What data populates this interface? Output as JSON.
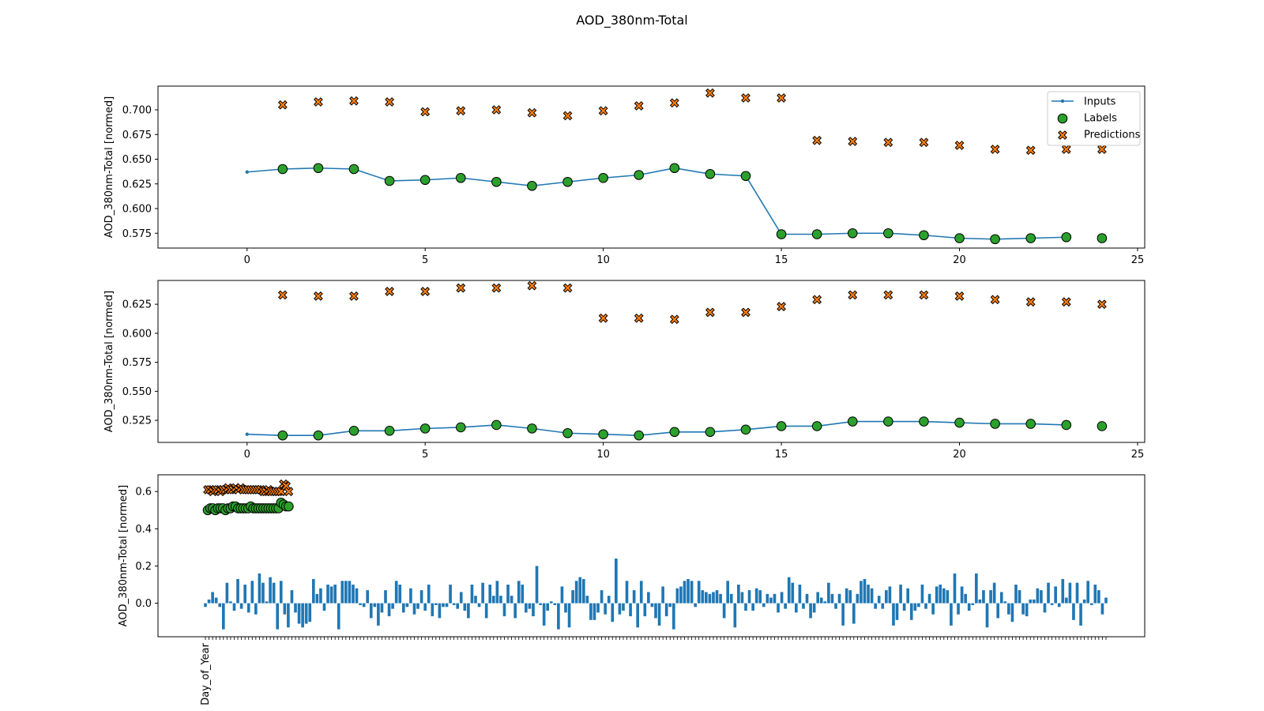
{
  "figure": {
    "title": "AOD_380nm-Total"
  },
  "colors": {
    "inputs": "#1f77b4",
    "labels": "#2ca02c",
    "predictions": "#ff7f0e",
    "bars": "#1f77b4"
  },
  "legend": {
    "inputs": "Inputs",
    "labels": "Labels",
    "predictions": "Predictions",
    "placement": "top-right"
  },
  "chart_data": [
    {
      "type": "line",
      "ylabel": "AOD_380nm-Total [normed]",
      "xlim": [
        -2.5,
        25.2
      ],
      "ylim": [
        0.56,
        0.724
      ],
      "xticks": [
        0,
        5,
        10,
        15,
        20,
        25
      ],
      "yticks": [
        0.575,
        0.6,
        0.625,
        0.65,
        0.675,
        0.7
      ],
      "yticklabels": [
        "0.575",
        "0.600",
        "0.625",
        "0.650",
        "0.675",
        "0.700"
      ],
      "legend_shown": true,
      "series": [
        {
          "name": "Inputs",
          "x": [
            0,
            1,
            2,
            3,
            4,
            5,
            6,
            7,
            8,
            9,
            10,
            11,
            12,
            13,
            14,
            15,
            16,
            17,
            18,
            19,
            20,
            21,
            22,
            23
          ],
          "values": [
            0.637,
            0.64,
            0.641,
            0.64,
            0.628,
            0.629,
            0.631,
            0.627,
            0.623,
            0.627,
            0.631,
            0.634,
            0.641,
            0.635,
            0.633,
            0.574,
            0.574,
            0.575,
            0.575,
            0.573,
            0.57,
            0.569,
            0.57,
            0.571
          ]
        },
        {
          "name": "Labels",
          "x": [
            1,
            2,
            3,
            4,
            5,
            6,
            7,
            8,
            9,
            10,
            11,
            12,
            13,
            14,
            15,
            16,
            17,
            18,
            19,
            20,
            21,
            22,
            23,
            24
          ],
          "values": [
            0.64,
            0.641,
            0.64,
            0.628,
            0.629,
            0.631,
            0.627,
            0.623,
            0.627,
            0.631,
            0.634,
            0.641,
            0.635,
            0.633,
            0.574,
            0.574,
            0.575,
            0.575,
            0.573,
            0.57,
            0.569,
            0.57,
            0.571,
            0.57
          ]
        },
        {
          "name": "Predictions",
          "x": [
            1,
            2,
            3,
            4,
            5,
            6,
            7,
            8,
            9,
            10,
            11,
            12,
            13,
            14,
            15,
            16,
            17,
            18,
            19,
            20,
            21,
            22,
            23,
            24
          ],
          "values": [
            0.705,
            0.708,
            0.709,
            0.708,
            0.698,
            0.699,
            0.7,
            0.697,
            0.694,
            0.699,
            0.704,
            0.707,
            0.717,
            0.712,
            0.712,
            0.669,
            0.668,
            0.667,
            0.667,
            0.664,
            0.66,
            0.659,
            0.66,
            0.66
          ]
        }
      ]
    },
    {
      "type": "line",
      "ylabel": "AOD_380nm-Total [normed]",
      "xlim": [
        -2.5,
        25.2
      ],
      "ylim": [
        0.506,
        0.6455
      ],
      "xticks": [
        0,
        5,
        10,
        15,
        20,
        25
      ],
      "yticks": [
        0.525,
        0.55,
        0.575,
        0.6,
        0.625
      ],
      "yticklabels": [
        "0.525",
        "0.550",
        "0.575",
        "0.600",
        "0.625"
      ],
      "legend_shown": false,
      "series": [
        {
          "name": "Inputs",
          "x": [
            0,
            1,
            2,
            3,
            4,
            5,
            6,
            7,
            8,
            9,
            10,
            11,
            12,
            13,
            14,
            15,
            16,
            17,
            18,
            19,
            20,
            21,
            22,
            23
          ],
          "values": [
            0.513,
            0.512,
            0.512,
            0.516,
            0.516,
            0.518,
            0.519,
            0.521,
            0.518,
            0.514,
            0.513,
            0.512,
            0.515,
            0.515,
            0.517,
            0.52,
            0.52,
            0.524,
            0.524,
            0.524,
            0.523,
            0.522,
            0.522,
            0.521
          ]
        },
        {
          "name": "Labels",
          "x": [
            1,
            2,
            3,
            4,
            5,
            6,
            7,
            8,
            9,
            10,
            11,
            12,
            13,
            14,
            15,
            16,
            17,
            18,
            19,
            20,
            21,
            22,
            23,
            24
          ],
          "values": [
            0.512,
            0.512,
            0.516,
            0.516,
            0.518,
            0.519,
            0.521,
            0.518,
            0.514,
            0.513,
            0.512,
            0.515,
            0.515,
            0.517,
            0.52,
            0.52,
            0.524,
            0.524,
            0.524,
            0.523,
            0.522,
            0.522,
            0.521,
            0.52
          ]
        },
        {
          "name": "Predictions",
          "x": [
            1,
            2,
            3,
            4,
            5,
            6,
            7,
            8,
            9,
            10,
            11,
            12,
            13,
            14,
            15,
            16,
            17,
            18,
            19,
            20,
            21,
            22,
            23,
            24
          ],
          "values": [
            0.633,
            0.632,
            0.632,
            0.636,
            0.636,
            0.639,
            0.639,
            0.641,
            0.639,
            0.613,
            0.613,
            0.612,
            0.618,
            0.618,
            0.623,
            0.629,
            0.633,
            0.633,
            0.633,
            0.632,
            0.629,
            0.627,
            0.627,
            0.625
          ]
        }
      ]
    },
    {
      "type": "bar",
      "ylabel": "AOD_380nm-Total [normed]",
      "ylim": [
        -0.18,
        0.69
      ],
      "yticks": [
        0.0,
        0.2,
        0.4,
        0.6
      ],
      "yticklabels": [
        "0.0",
        "0.2",
        "0.4",
        "0.6"
      ],
      "xticklabels": [
        "Day_of_Year"
      ],
      "bar_values": [
        -0.02,
        0.02,
        0.06,
        0.03,
        -0.02,
        -0.14,
        0.11,
        0.01,
        -0.04,
        0.13,
        -0.03,
        0.1,
        -0.05,
        0.12,
        -0.06,
        0.16,
        0.11,
        0.01,
        0.14,
        0.11,
        -0.14,
        0.12,
        -0.06,
        -0.13,
        0.07,
        -0.05,
        -0.11,
        -0.13,
        -0.11,
        -0.1,
        0.13,
        0.05,
        0.08,
        -0.04,
        0.1,
        0.09,
        0.1,
        -0.14,
        0.12,
        0.12,
        0.12,
        0.1,
        0.08,
        -0.01,
        -0.02,
        0.07,
        -0.08,
        -0.02,
        -0.12,
        -0.05,
        0.07,
        -0.07,
        -0.03,
        0.12,
        0.1,
        -0.05,
        -0.02,
        0.08,
        -0.06,
        -0.03,
        0.07,
        -0.04,
        0.1,
        -0.07,
        -0.01,
        -0.08,
        -0.02,
        -0.02,
        0.1,
        -0.01,
        -0.03,
        0.06,
        -0.04,
        -0.08,
        0.1,
        0.04,
        -0.02,
        0.11,
        -0.08,
        0.1,
        0.04,
        0.12,
        0.04,
        -0.07,
        0.1,
        0.04,
        -0.08,
        0.12,
        0.1,
        -0.05,
        -0.03,
        -0.07,
        0.2,
        -0.01,
        -0.12,
        -0.04,
        0.01,
        -0.01,
        -0.14,
        0.09,
        -0.05,
        -0.13,
        0.07,
        0.12,
        0.14,
        0.13,
        0.04,
        -0.09,
        -0.09,
        -0.05,
        0.07,
        -0.06,
        0.04,
        -0.1,
        0.24,
        -0.06,
        -0.04,
        0.12,
        -0.07,
        0.07,
        -0.13,
        0.12,
        -0.07,
        0.06,
        -0.02,
        -0.08,
        -0.12,
        0.09,
        -0.07,
        -0.02,
        -0.14,
        0.08,
        0.09,
        0.12,
        0.13,
        0.12,
        -0.02,
        0.12,
        0.07,
        0.06,
        0.05,
        0.06,
        0.07,
        0.05,
        -0.08,
        0.12,
        0.05,
        -0.13,
        0.1,
        0.06,
        -0.04,
        0.07,
        -0.04,
        0.08,
        0.07,
        -0.02,
        0.05,
        0.03,
        0.05,
        -0.05,
        0.06,
        -0.03,
        0.14,
        0.11,
        -0.05,
        0.1,
        -0.03,
        0.05,
        -0.08,
        -0.05,
        0.06,
        0.03,
        0.01,
        0.11,
        0.05,
        -0.03,
        0.05,
        -0.12,
        0.08,
        0.07,
        -0.11,
        0.05,
        0.12,
        0.13,
        0.1,
        0.08,
        -0.03,
        0.04,
        -0.03,
        0.07,
        0.09,
        -0.12,
        -0.09,
        0.1,
        -0.04,
        0.08,
        -0.09,
        -0.04,
        -0.02,
        0.1,
        -0.03,
        0.05,
        -0.06,
        0.09,
        0.1,
        0.08,
        0.07,
        -0.12,
        0.16,
        -0.06,
        0.09,
        0.05,
        -0.04,
        -0.01,
        0.16,
        0.02,
        0.07,
        -0.13,
        0.07,
        0.11,
        -0.08,
        0.06,
        0.01,
        -0.06,
        -0.1,
        0.1,
        0.07,
        -0.06,
        -0.07,
        0.02,
        0.02,
        0.08,
        0.07,
        -0.05,
        0.11,
        -0.01,
        0.09,
        -0.02,
        0.13,
        0.03,
        0.11,
        -0.09,
        0.11,
        -0.12,
        0.02,
        0.12,
        -0.01,
        0.1,
        0.07,
        -0.06,
        0.03
      ]
    }
  ],
  "panel3_points": {
    "predictions": [
      0.61,
      0.61,
      0.6,
      0.61,
      0.61,
      0.6,
      0.61,
      0.61,
      0.62,
      0.61,
      0.61,
      0.62,
      0.61,
      0.62,
      0.61,
      0.61,
      0.61,
      0.61,
      0.61,
      0.61,
      0.61,
      0.61,
      0.6,
      0.6,
      0.61,
      0.6,
      0.6,
      0.6,
      0.6,
      0.6,
      0.64,
      0.63,
      0.6
    ],
    "labels": [
      0.5,
      0.51,
      0.51,
      0.5,
      0.51,
      0.51,
      0.51,
      0.5,
      0.51,
      0.51,
      0.52,
      0.52,
      0.51,
      0.51,
      0.51,
      0.51,
      0.51,
      0.52,
      0.51,
      0.51,
      0.51,
      0.51,
      0.51,
      0.51,
      0.51,
      0.51,
      0.51,
      0.51,
      0.51,
      0.54,
      0.53,
      0.52,
      0.52
    ]
  }
}
